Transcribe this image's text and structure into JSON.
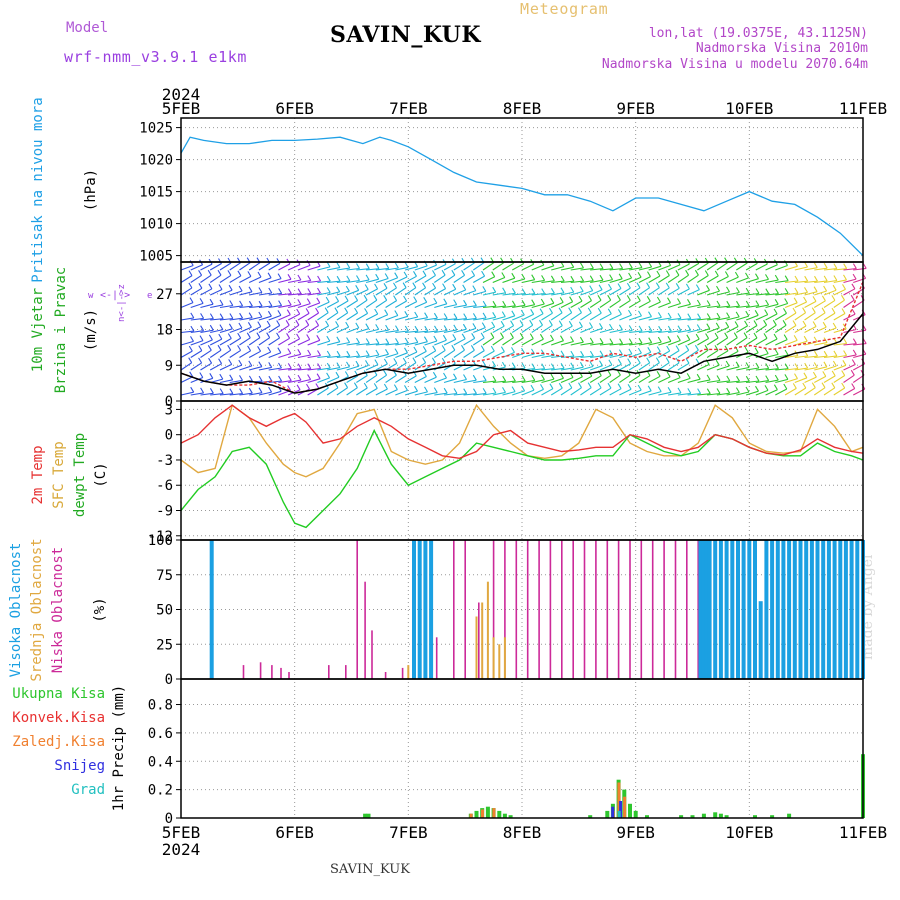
{
  "header": {
    "title": "SAVIN_KUK",
    "model_label": "Model",
    "model_name": "wrf-nmm_v3.9.1 e1km",
    "meteogram_label": "Meteogram",
    "lonlat": "lon,lat (19.0375E, 43.1125N)",
    "elevation": "Nadmorska Visina 2010m",
    "elevation_model": "Nadmorska Visina u modelu 2070.64m"
  },
  "footer": {
    "station": "SAVIN_KUK",
    "credit": "made by Angel"
  },
  "time_axis": {
    "year": "2024",
    "ticks": [
      "5FEB",
      "6FEB",
      "7FEB",
      "8FEB",
      "9FEB",
      "10FEB",
      "11FEB"
    ]
  },
  "colors": {
    "pressure": "#1fa0e6",
    "wind_speed": "#000000",
    "wind_gust": "#e83030",
    "temp_2m": "#e63232",
    "temp_sfc": "#e0a840",
    "dewpoint": "#22cc22",
    "cloud_high": "#1ba0e2",
    "cloud_mid": "#e0a840",
    "cloud_low": "#cc2a99",
    "precip_total": "#2ec62e",
    "precip_conv": "#e83030",
    "precip_frozen": "#f08030",
    "snow": "#3030e0",
    "hail": "#22c0c0"
  },
  "chart_data": [
    {
      "type": "line",
      "ylabel": [
        "Pritisak na nivou mora",
        "(hPa)"
      ],
      "yticks": [
        1005,
        1010,
        1015,
        1020,
        1025
      ],
      "ylim": [
        1004,
        1026.5
      ],
      "x_days": [
        0,
        0.08,
        0.2,
        0.4,
        0.6,
        0.8,
        1.0,
        1.2,
        1.4,
        1.6,
        1.75,
        1.85,
        2.0,
        2.2,
        2.4,
        2.6,
        2.8,
        3.0,
        3.2,
        3.4,
        3.6,
        3.8,
        4.0,
        4.2,
        4.4,
        4.6,
        4.8,
        5.0,
        5.2,
        5.4,
        5.6,
        5.8,
        6.0
      ],
      "series": [
        {
          "values": [
            1021,
            1023.5,
            1023,
            1022.5,
            1022.5,
            1023,
            1023,
            1023.2,
            1023.5,
            1022.5,
            1023.5,
            1023,
            1022,
            1020,
            1018,
            1016.5,
            1016,
            1015.5,
            1014.5,
            1014.5,
            1013.5,
            1012,
            1014,
            1014,
            1013,
            1012,
            1013.5,
            1015,
            1013.5,
            1013,
            1011,
            1008.5,
            1005
          ]
        }
      ]
    },
    {
      "type": "line",
      "ylabel": [
        "10m Vjetar",
        "Brzina i Pravac",
        "(m/s)"
      ],
      "yticks": [
        0,
        9,
        18,
        27
      ],
      "ylim": [
        0,
        35
      ],
      "x_days": [
        0,
        0.2,
        0.4,
        0.6,
        0.8,
        1.0,
        1.2,
        1.4,
        1.6,
        1.8,
        2.0,
        2.2,
        2.4,
        2.6,
        2.8,
        3.0,
        3.2,
        3.4,
        3.6,
        3.8,
        4.0,
        4.2,
        4.4,
        4.6,
        4.8,
        5.0,
        5.2,
        5.4,
        5.6,
        5.8,
        6.0
      ],
      "series": [
        {
          "values": [
            7,
            5,
            4,
            5,
            4,
            2,
            3,
            5,
            7,
            8,
            7,
            8,
            9,
            9,
            8,
            8,
            7,
            7,
            7,
            8,
            7,
            8,
            7,
            10,
            11,
            12,
            10,
            12,
            13,
            15,
            22
          ]
        },
        {
          "values": [
            7,
            5,
            4,
            4,
            5,
            2,
            3,
            5,
            7,
            8,
            8,
            9,
            10,
            10,
            11,
            12,
            12,
            11,
            10,
            12,
            11,
            12,
            10,
            13,
            13,
            14,
            13,
            14,
            15,
            16,
            30
          ]
        }
      ]
    },
    {
      "type": "line",
      "ylabel": [
        "2m Temp",
        "SFC Temp",
        "dewpt Temp",
        "(C)"
      ],
      "yticks": [
        -12,
        -9,
        -6,
        -3,
        0,
        3
      ],
      "ylim": [
        -12.5,
        4
      ],
      "x_days": [
        0,
        0.15,
        0.3,
        0.45,
        0.6,
        0.75,
        0.9,
        1.0,
        1.1,
        1.25,
        1.4,
        1.55,
        1.7,
        1.85,
        2.0,
        2.15,
        2.3,
        2.45,
        2.6,
        2.75,
        2.9,
        3.05,
        3.2,
        3.35,
        3.5,
        3.65,
        3.8,
        3.95,
        4.1,
        4.25,
        4.4,
        4.55,
        4.7,
        4.85,
        5.0,
        5.15,
        5.3,
        5.45,
        5.6,
        5.75,
        5.9,
        6.0
      ],
      "series": [
        {
          "name": "2m Temp",
          "values": [
            -1,
            0,
            2,
            3.5,
            2,
            1,
            2,
            2.5,
            1.5,
            -1,
            -0.5,
            1,
            2,
            1,
            -0.5,
            -1.5,
            -2.5,
            -2.8,
            -2,
            0,
            0.5,
            -1,
            -1.5,
            -2,
            -1.8,
            -1.5,
            -1.5,
            0,
            -0.5,
            -1.5,
            -2,
            -1.5,
            0,
            -0.5,
            -1.5,
            -2.2,
            -2.4,
            -1.8,
            -0.5,
            -1.5,
            -2,
            -2.2
          ]
        },
        {
          "name": "SFC Temp",
          "values": [
            -3,
            -4.5,
            -4,
            3.5,
            2,
            -1,
            -3.5,
            -4.5,
            -5,
            -4,
            -1,
            2.5,
            3,
            -2,
            -3,
            -3.5,
            -3,
            -1,
            3.5,
            1,
            -1,
            -2.5,
            -2.8,
            -2.5,
            -1,
            3,
            2,
            -1,
            -2,
            -2.5,
            -2.5,
            -1,
            3.5,
            2,
            -1,
            -2,
            -2.2,
            -2,
            3,
            1,
            -2,
            -1.5
          ]
        },
        {
          "name": "dewpt Temp",
          "values": [
            -9,
            -6.5,
            -5,
            -2,
            -1.5,
            -3.5,
            -8,
            -10.5,
            -11,
            -9,
            -7,
            -4,
            0.5,
            -3.5,
            -6,
            -5,
            -4,
            -3,
            -1,
            -1.5,
            -2,
            -2.5,
            -3,
            -3,
            -2.8,
            -2.5,
            -2.5,
            0,
            -1,
            -2,
            -2.5,
            -2,
            0,
            -0.5,
            -1.5,
            -2.2,
            -2.5,
            -2.5,
            -1,
            -2,
            -2.5,
            -3
          ]
        }
      ]
    },
    {
      "type": "bar",
      "ylabel": [
        "Visoka Oblacnost",
        "Srednja Oblacnost",
        "Niska Oblacnost",
        "(%)"
      ],
      "yticks": [
        0,
        25,
        50,
        75,
        100
      ],
      "ylim": [
        0,
        100
      ],
      "series": [
        {
          "name": "Visoka Oblacnost",
          "x_days": [
            0.27,
            2.05,
            2.1,
            2.15,
            2.2,
            4.57,
            4.6,
            4.62,
            4.65,
            4.7,
            4.75,
            4.8,
            4.85,
            4.9,
            4.95,
            5.0,
            5.05,
            5.1,
            5.15,
            5.2,
            5.25,
            5.3,
            5.35,
            5.4,
            5.45,
            5.5,
            5.55,
            5.6,
            5.65,
            5.7,
            5.75,
            5.8,
            5.85,
            5.9,
            5.95,
            6.0
          ],
          "values": [
            100,
            100,
            100,
            100,
            100,
            100,
            100,
            100,
            100,
            100,
            100,
            100,
            100,
            100,
            100,
            100,
            100,
            56,
            100,
            100,
            100,
            100,
            100,
            100,
            100,
            100,
            100,
            100,
            100,
            100,
            100,
            100,
            100,
            100,
            100,
            100
          ]
        },
        {
          "name": "Srednja Oblacnost",
          "x_days": [
            2.0,
            2.1,
            2.15,
            2.6,
            2.65,
            2.7,
            2.75,
            2.8,
            2.85
          ],
          "values": [
            10,
            100,
            100,
            45,
            55,
            70,
            30,
            25,
            30
          ]
        },
        {
          "name": "Niska Oblacnost",
          "x_days": [
            0.55,
            0.7,
            0.8,
            0.88,
            0.95,
            1.3,
            1.45,
            1.55,
            1.62,
            1.68,
            1.8,
            1.95,
            2.25,
            2.4,
            2.5,
            2.62,
            2.75,
            2.85,
            2.95,
            3.05,
            3.15,
            3.25,
            3.35,
            3.45,
            3.55,
            3.65,
            3.75,
            3.85,
            3.95,
            4.05,
            4.15,
            4.25,
            4.35,
            4.45,
            4.55,
            4.65,
            4.75,
            4.85,
            4.95,
            5.05,
            5.15,
            5.25,
            5.35,
            5.45,
            5.55,
            5.65,
            5.75,
            5.85,
            5.95
          ],
          "values": [
            10,
            12,
            10,
            8,
            5,
            10,
            10,
            100,
            70,
            35,
            5,
            8,
            30,
            100,
            100,
            55,
            100,
            100,
            100,
            100,
            100,
            100,
            100,
            100,
            100,
            100,
            100,
            100,
            100,
            100,
            100,
            100,
            100,
            100,
            100,
            100,
            100,
            100,
            100,
            100,
            100,
            100,
            100,
            100,
            100,
            100,
            100,
            100,
            70
          ]
        }
      ]
    },
    {
      "type": "bar",
      "ylabel": [
        "Ukupna Kisa",
        "Konvek.Kisa",
        "Zaledj.Kisa",
        "Snijeg",
        "Grad",
        "1hr Precip (mm)"
      ],
      "yticks": [
        0,
        0.2,
        0.4,
        0.6,
        0.8
      ],
      "ylim": [
        0,
        0.98
      ],
      "series": [
        {
          "name": "Ukupna Kisa",
          "x_days": [
            1.62,
            1.65,
            2.55,
            2.6,
            2.65,
            2.7,
            2.75,
            2.8,
            2.85,
            2.9,
            3.6,
            3.75,
            3.8,
            3.85,
            3.9,
            3.95,
            4.0,
            4.1,
            4.4,
            4.5,
            4.6,
            4.7,
            4.75,
            4.8,
            5.05,
            5.2,
            5.35,
            6.0
          ],
          "values": [
            0.03,
            0.03,
            0.03,
            0.05,
            0.07,
            0.08,
            0.07,
            0.05,
            0.03,
            0.02,
            0.02,
            0.05,
            0.1,
            0.27,
            0.2,
            0.1,
            0.05,
            0.02,
            0.02,
            0.02,
            0.03,
            0.04,
            0.03,
            0.02,
            0.02,
            0.02,
            0.03,
            0.45
          ]
        },
        {
          "name": "Zaledj.Kisa",
          "x_days": [
            2.57,
            2.67,
            2.77,
            3.82,
            3.87,
            3.92
          ],
          "values": [
            0.03,
            0.06,
            0.07,
            0.05,
            0.25,
            0.15
          ]
        },
        {
          "name": "Snijeg",
          "x_days": [
            3.78,
            3.85
          ],
          "values": [
            0.08,
            0.12
          ]
        },
        {
          "name": "Grad",
          "x_days": [
            3.82
          ],
          "values": [
            0.05
          ]
        }
      ]
    }
  ]
}
